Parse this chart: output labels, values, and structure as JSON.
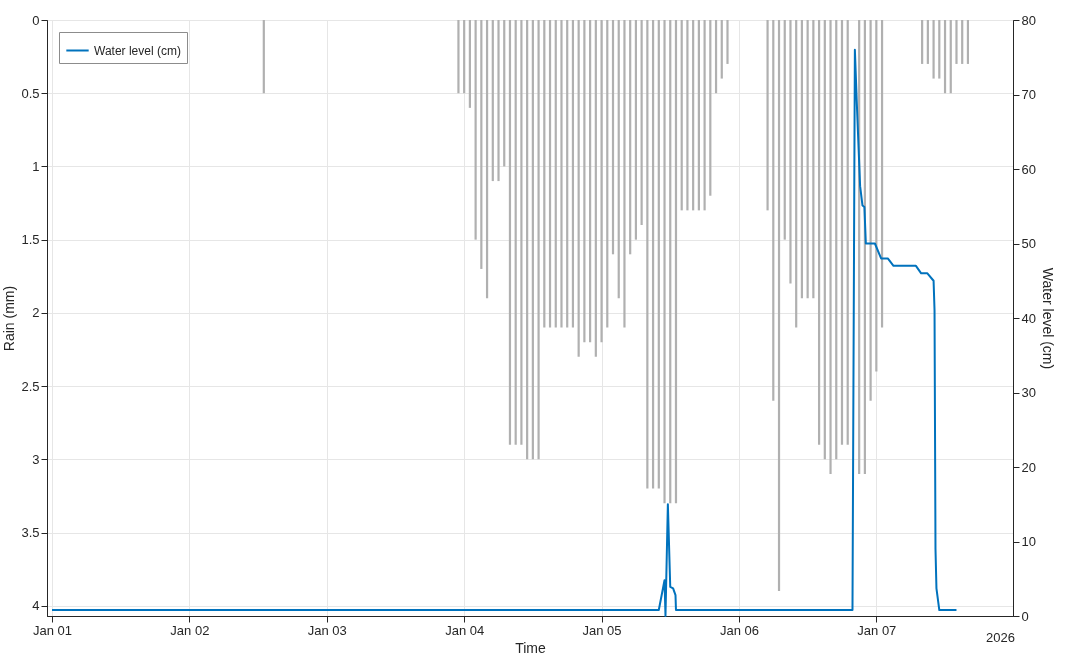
{
  "chart_data": {
    "type": "bar",
    "xlabel": "Time",
    "ylabel": "Rain (mm)",
    "y2label": "Water level (cm)",
    "xlim": [
      "2026-01-01T00:00",
      "2026-01-07T23:00"
    ],
    "xticks": [
      {
        "value": "2026-01-01T00:00",
        "label": "Jan 01"
      },
      {
        "value": "2026-01-02T00:00",
        "label": "Jan 02"
      },
      {
        "value": "2026-01-03T00:00",
        "label": "Jan 03"
      },
      {
        "value": "2026-01-04T00:00",
        "label": "Jan 04"
      },
      {
        "value": "2026-01-05T00:00",
        "label": "Jan 05"
      },
      {
        "value": "2026-01-06T00:00",
        "label": "Jan 06"
      },
      {
        "value": "2026-01-07T00:00",
        "label": "Jan 07"
      }
    ],
    "ylim": [
      4.07,
      0
    ],
    "yticks": [
      0,
      0.5,
      1,
      1.5,
      2,
      2.5,
      3,
      3.5,
      4
    ],
    "y2lim": [
      0,
      80
    ],
    "y2ticks": [
      0,
      10,
      20,
      30,
      40,
      50,
      60,
      70,
      80
    ],
    "grid": true,
    "legend": "top left",
    "annotations": [
      "2026"
    ],
    "series": [
      {
        "color": "#b0b0b0",
        "x": [
          "2026-01-02T13:00",
          "2026-01-03T23:00",
          "2026-01-04T00:00",
          "2026-01-04T01:00",
          "2026-01-04T02:00",
          "2026-01-04T03:00",
          "2026-01-04T04:00",
          "2026-01-04T05:00",
          "2026-01-04T06:00",
          "2026-01-04T07:00",
          "2026-01-04T08:00",
          "2026-01-04T09:00",
          "2026-01-04T10:00",
          "2026-01-04T11:00",
          "2026-01-04T12:00",
          "2026-01-04T13:00",
          "2026-01-04T14:00",
          "2026-01-04T15:00",
          "2026-01-04T16:00",
          "2026-01-04T17:00",
          "2026-01-04T18:00",
          "2026-01-04T19:00",
          "2026-01-04T20:00",
          "2026-01-04T21:00",
          "2026-01-04T22:00",
          "2026-01-04T23:00",
          "2026-01-05T00:00",
          "2026-01-05T01:00",
          "2026-01-05T02:00",
          "2026-01-05T03:00",
          "2026-01-05T04:00",
          "2026-01-05T05:00",
          "2026-01-05T06:00",
          "2026-01-05T07:00",
          "2026-01-05T08:00",
          "2026-01-05T09:00",
          "2026-01-05T10:00",
          "2026-01-05T11:00",
          "2026-01-05T12:00",
          "2026-01-05T13:00",
          "2026-01-05T14:00",
          "2026-01-05T15:00",
          "2026-01-05T16:00",
          "2026-01-05T17:00",
          "2026-01-05T18:00",
          "2026-01-05T19:00",
          "2026-01-05T20:00",
          "2026-01-05T21:00",
          "2026-01-05T22:00",
          "2026-01-06T05:00",
          "2026-01-06T06:00",
          "2026-01-06T07:00",
          "2026-01-06T08:00",
          "2026-01-06T09:00",
          "2026-01-06T10:00",
          "2026-01-06T11:00",
          "2026-01-06T12:00",
          "2026-01-06T13:00",
          "2026-01-06T14:00",
          "2026-01-06T15:00",
          "2026-01-06T16:00",
          "2026-01-06T17:00",
          "2026-01-06T18:00",
          "2026-01-06T19:00",
          "2026-01-06T20:00",
          "2026-01-06T21:00",
          "2026-01-06T22:00",
          "2026-01-06T23:00",
          "2026-01-07T00:00",
          "2026-01-07T01:00",
          "2026-01-07T08:00",
          "2026-01-07T09:00",
          "2026-01-07T10:00",
          "2026-01-07T11:00",
          "2026-01-07T12:00",
          "2026-01-07T13:00",
          "2026-01-07T14:00",
          "2026-01-07T15:00",
          "2026-01-07T16:00"
        ],
        "values": [
          0.5,
          0.5,
          0.5,
          0.6,
          1.5,
          1.7,
          1.9,
          1.1,
          1.1,
          1.0,
          2.9,
          2.9,
          2.9,
          3.0,
          3.0,
          3.0,
          2.1,
          2.1,
          2.1,
          2.1,
          2.1,
          2.1,
          2.3,
          2.2,
          2.2,
          2.3,
          2.2,
          2.1,
          1.6,
          1.9,
          2.1,
          1.6,
          1.5,
          1.4,
          3.2,
          3.2,
          3.2,
          3.3,
          3.3,
          3.3,
          1.3,
          1.3,
          1.3,
          1.3,
          1.3,
          1.2,
          0.5,
          0.4,
          0.3,
          1.3,
          2.6,
          3.9,
          1.5,
          1.8,
          2.1,
          1.9,
          1.9,
          1.9,
          2.9,
          3.0,
          3.1,
          3.0,
          2.9,
          2.9,
          null,
          3.1,
          3.1,
          2.6,
          2.4,
          2.1,
          0.3,
          0.3,
          0.4,
          0.4,
          0.5,
          0.5,
          0.3,
          0.3,
          0.3
        ]
      },
      {
        "type": "line",
        "name": "Water level (cm)",
        "color": "#0072bd",
        "axis": "y2",
        "x": [
          "2026-01-01T00:00",
          "2026-01-05T10:00",
          "2026-01-05T11:00",
          "2026-01-05T11:10",
          "2026-01-05T11:35",
          "2026-01-05T12:00",
          "2026-01-05T12:30",
          "2026-01-05T12:55",
          "2026-01-05T13:00",
          "2026-01-06T19:50",
          "2026-01-06T20:15",
          "2026-01-06T20:35",
          "2026-01-06T20:55",
          "2026-01-06T21:10",
          "2026-01-06T21:35",
          "2026-01-06T21:55",
          "2026-01-06T22:10",
          "2026-01-06T23:45",
          "2026-01-07T00:50",
          "2026-01-07T02:00",
          "2026-01-07T03:00",
          "2026-01-07T06:55",
          "2026-01-07T07:50",
          "2026-01-07T08:55",
          "2026-01-07T10:00",
          "2026-01-07T10:10",
          "2026-01-07T10:20",
          "2026-01-07T10:30",
          "2026-01-07T11:00",
          "2026-01-07T14:00"
        ],
        "values": [
          0.8,
          0.8,
          4.8,
          0,
          15,
          3.9,
          3.7,
          2.8,
          0.8,
          0.8,
          76,
          69,
          62.5,
          57.7,
          55.1,
          54.9,
          50,
          50,
          48,
          48,
          47,
          47,
          46,
          46,
          45,
          41,
          9,
          3.7,
          0.8,
          0.8
        ]
      }
    ]
  }
}
